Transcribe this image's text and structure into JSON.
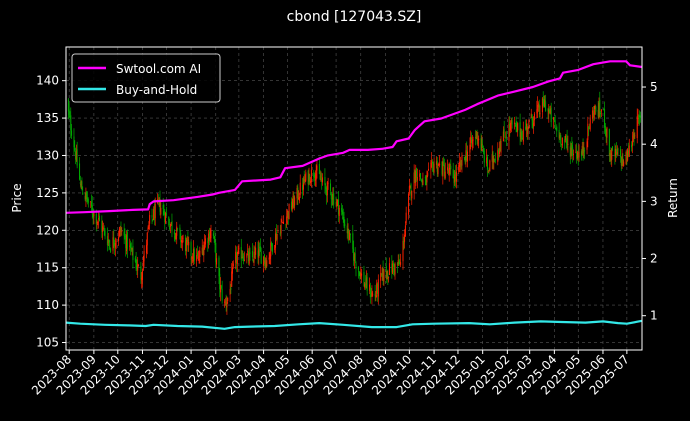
{
  "chart_data": {
    "type": "line",
    "title": "cbond [127043.SZ]",
    "ylabel_left": "Price",
    "ylabel_right": "Return",
    "ylim_left": [
      104,
      144.5
    ],
    "ylim_right": [
      0.4,
      5.7
    ],
    "yticks_left": [
      105,
      110,
      115,
      120,
      125,
      130,
      135,
      140
    ],
    "yticks_right": [
      1,
      2,
      3,
      4,
      5
    ],
    "x_range": [
      "2023-07-28",
      "2025-07-20"
    ],
    "xticks": [
      "2023-08",
      "2023-09",
      "2023-10",
      "2023-11",
      "2023-12",
      "2024-01",
      "2024-02",
      "2024-03",
      "2024-04",
      "2024-05",
      "2024-06",
      "2024-07",
      "2024-08",
      "2024-09",
      "2024-10",
      "2024-11",
      "2024-12",
      "2025-01",
      "2025-02",
      "2025-03",
      "2025-04",
      "2025-05",
      "2025-06",
      "2025-07"
    ],
    "grid": true,
    "legend_position": "top-left",
    "candle_colors": {
      "up": "#ff2200",
      "down": "#00aa00"
    },
    "price_path": [
      [
        "2023-07-28",
        137
      ],
      [
        "2023-08-05",
        133
      ],
      [
        "2023-08-15",
        126
      ],
      [
        "2023-08-28",
        123
      ],
      [
        "2023-09-08",
        121
      ],
      [
        "2023-09-22",
        118
      ],
      [
        "2023-10-05",
        120
      ],
      [
        "2023-10-18",
        117
      ],
      [
        "2023-10-30",
        114
      ],
      [
        "2023-11-10",
        121
      ],
      [
        "2023-11-22",
        123.5
      ],
      [
        "2023-12-05",
        121
      ],
      [
        "2023-12-18",
        119
      ],
      [
        "2024-01-01",
        117
      ],
      [
        "2024-01-10",
        116
      ],
      [
        "2024-01-20",
        119
      ],
      [
        "2024-01-28",
        120
      ],
      [
        "2024-02-05",
        113
      ],
      [
        "2024-02-12",
        110
      ],
      [
        "2024-02-18",
        111.5
      ],
      [
        "2024-02-25",
        116
      ],
      [
        "2024-03-05",
        117
      ],
      [
        "2024-03-15",
        116
      ],
      [
        "2024-03-25",
        117
      ],
      [
        "2024-04-05",
        116
      ],
      [
        "2024-04-15",
        119
      ],
      [
        "2024-04-25",
        121
      ],
      [
        "2024-05-05",
        123
      ],
      [
        "2024-05-15",
        125
      ],
      [
        "2024-05-25",
        127
      ],
      [
        "2024-06-05",
        128
      ],
      [
        "2024-06-15",
        126
      ],
      [
        "2024-06-25",
        125
      ],
      [
        "2024-07-05",
        123
      ],
      [
        "2024-07-15",
        120
      ],
      [
        "2024-07-25",
        116
      ],
      [
        "2024-08-05",
        113
      ],
      [
        "2024-08-18",
        111
      ],
      [
        "2024-08-28",
        114
      ],
      [
        "2024-09-10",
        115
      ],
      [
        "2024-09-20",
        115.5
      ],
      [
        "2024-10-01",
        125
      ],
      [
        "2024-10-10",
        128
      ],
      [
        "2024-10-20",
        126
      ],
      [
        "2024-11-01",
        129
      ],
      [
        "2024-11-15",
        128
      ],
      [
        "2024-11-28",
        127
      ],
      [
        "2024-12-10",
        130
      ],
      [
        "2024-12-25",
        133
      ],
      [
        "2025-01-08",
        128
      ],
      [
        "2025-01-20",
        131
      ],
      [
        "2025-02-05",
        134
      ],
      [
        "2025-02-20",
        133
      ],
      [
        "2025-03-05",
        135
      ],
      [
        "2025-03-20",
        137
      ],
      [
        "2025-04-05",
        133
      ],
      [
        "2025-04-20",
        131
      ],
      [
        "2025-05-05",
        130
      ],
      [
        "2025-05-20",
        136
      ],
      [
        "2025-06-01",
        136
      ],
      [
        "2025-06-10",
        130
      ],
      [
        "2025-06-20",
        130
      ],
      [
        "2025-06-28",
        129
      ],
      [
        "2025-07-05",
        131
      ],
      [
        "2025-07-12",
        134
      ],
      [
        "2025-07-20",
        135
      ]
    ],
    "series": [
      {
        "name": "Swtool.com AI",
        "color": "#ff00ff",
        "points": [
          [
            "2023-07-28",
            2.8
          ],
          [
            "2023-08-20",
            2.81
          ],
          [
            "2023-09-20",
            2.83
          ],
          [
            "2023-10-20",
            2.85
          ],
          [
            "2023-11-08",
            2.86
          ],
          [
            "2023-11-10",
            2.95
          ],
          [
            "2023-11-15",
            3.0
          ],
          [
            "2023-12-10",
            3.02
          ],
          [
            "2024-01-10",
            3.08
          ],
          [
            "2024-01-28",
            3.12
          ],
          [
            "2024-02-05",
            3.15
          ],
          [
            "2024-02-25",
            3.2
          ],
          [
            "2024-03-05",
            3.35
          ],
          [
            "2024-04-10",
            3.38
          ],
          [
            "2024-04-22",
            3.42
          ],
          [
            "2024-04-28",
            3.58
          ],
          [
            "2024-05-20",
            3.62
          ],
          [
            "2024-06-10",
            3.75
          ],
          [
            "2024-06-20",
            3.8
          ],
          [
            "2024-07-10",
            3.85
          ],
          [
            "2024-07-18",
            3.9
          ],
          [
            "2024-08-10",
            3.9
          ],
          [
            "2024-08-28",
            3.92
          ],
          [
            "2024-09-10",
            3.95
          ],
          [
            "2024-09-15",
            4.05
          ],
          [
            "2024-09-30",
            4.1
          ],
          [
            "2024-10-08",
            4.25
          ],
          [
            "2024-10-20",
            4.4
          ],
          [
            "2024-11-10",
            4.45
          ],
          [
            "2024-12-10",
            4.6
          ],
          [
            "2024-12-25",
            4.7
          ],
          [
            "2025-01-20",
            4.85
          ],
          [
            "2025-02-10",
            4.92
          ],
          [
            "2025-03-05",
            5.0
          ],
          [
            "2025-03-25",
            5.1
          ],
          [
            "2025-04-08",
            5.15
          ],
          [
            "2025-04-12",
            5.25
          ],
          [
            "2025-05-01",
            5.3
          ],
          [
            "2025-05-20",
            5.4
          ],
          [
            "2025-06-10",
            5.45
          ],
          [
            "2025-06-30",
            5.45
          ],
          [
            "2025-07-05",
            5.38
          ],
          [
            "2025-07-20",
            5.35
          ]
        ]
      },
      {
        "name": "Buy-and-Hold",
        "color": "#33e8e8",
        "points": [
          [
            "2023-07-28",
            0.88
          ],
          [
            "2023-08-15",
            0.86
          ],
          [
            "2023-09-15",
            0.84
          ],
          [
            "2023-10-15",
            0.83
          ],
          [
            "2023-11-05",
            0.82
          ],
          [
            "2023-11-15",
            0.84
          ],
          [
            "2023-12-15",
            0.82
          ],
          [
            "2024-01-15",
            0.81
          ],
          [
            "2024-02-12",
            0.77
          ],
          [
            "2024-02-25",
            0.8
          ],
          [
            "2024-03-15",
            0.81
          ],
          [
            "2024-04-15",
            0.82
          ],
          [
            "2024-05-15",
            0.85
          ],
          [
            "2024-06-10",
            0.87
          ],
          [
            "2024-07-10",
            0.84
          ],
          [
            "2024-08-15",
            0.8
          ],
          [
            "2024-09-15",
            0.8
          ],
          [
            "2024-10-05",
            0.85
          ],
          [
            "2024-11-01",
            0.86
          ],
          [
            "2024-12-15",
            0.87
          ],
          [
            "2025-01-10",
            0.85
          ],
          [
            "2025-02-10",
            0.88
          ],
          [
            "2025-03-15",
            0.9
          ],
          [
            "2025-04-10",
            0.89
          ],
          [
            "2025-05-10",
            0.88
          ],
          [
            "2025-06-01",
            0.9
          ],
          [
            "2025-06-20",
            0.87
          ],
          [
            "2025-07-01",
            0.86
          ],
          [
            "2025-07-20",
            0.91
          ]
        ]
      }
    ]
  }
}
